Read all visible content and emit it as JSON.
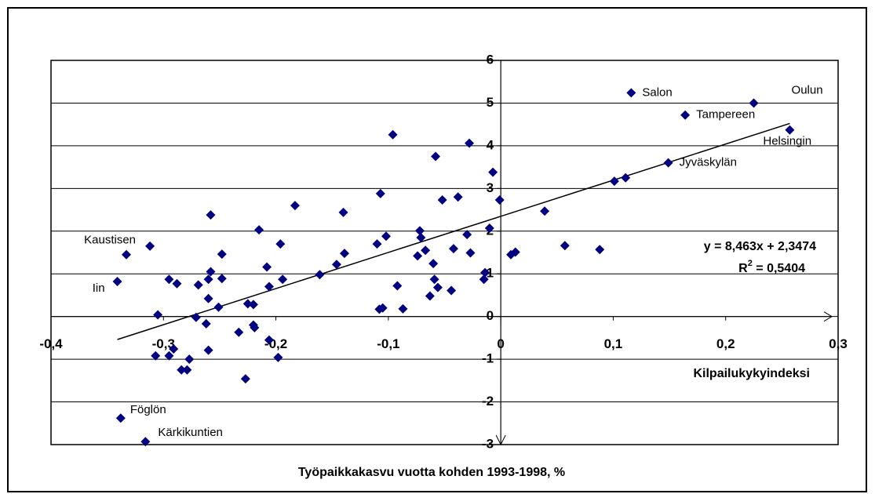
{
  "chart_data": {
    "type": "scatter",
    "x_label": "Kilpailukykyindeksi",
    "y_label": "Työpaikkakasvu vuotta kohden 1993-1998, %",
    "equation_label": "y = 8,463x + 2,3474",
    "r_squared_label": {
      "base": "R",
      "sup": "2",
      "rest": " = 0,5404"
    },
    "trendline": {
      "slope": 8.463,
      "intercept": 2.3474
    },
    "color": "#000080",
    "xlim": [
      -0.4,
      0.3
    ],
    "ylim": [
      -3,
      6
    ],
    "xticks": [
      {
        "value": -0.4,
        "label": "-0,4"
      },
      {
        "value": -0.3,
        "label": "-0,3"
      },
      {
        "value": -0.2,
        "label": "-0,2"
      },
      {
        "value": -0.1,
        "label": "-0,1"
      },
      0,
      {
        "value": 0.1,
        "label": "0,1"
      },
      {
        "value": 0.2,
        "label": "0,2"
      },
      {
        "value": 0.3,
        "label": "0,3"
      }
    ],
    "yticks": [
      -3,
      -2,
      -1,
      0,
      1,
      2,
      3,
      4,
      5,
      6
    ],
    "grid": true,
    "x": [
      0.116,
      0.225,
      0.164,
      0.257,
      0.149,
      -0.333,
      -0.341,
      -0.338,
      -0.316,
      0.101,
      0.111,
      0.039,
      0.057,
      0.088,
      -0.312,
      -0.295,
      -0.305,
      -0.307,
      -0.295,
      -0.291,
      -0.284,
      -0.279,
      -0.277,
      -0.271,
      -0.288,
      -0.269,
      -0.26,
      -0.258,
      -0.26,
      -0.262,
      -0.26,
      -0.258,
      -0.248,
      -0.248,
      -0.251,
      -0.233,
      -0.227,
      -0.225,
      -0.22,
      -0.22,
      -0.219,
      -0.215,
      -0.208,
      -0.206,
      -0.206,
      -0.198,
      -0.196,
      -0.194,
      -0.183,
      -0.161,
      -0.146,
      -0.14,
      -0.139,
      -0.11,
      -0.107,
      -0.108,
      -0.105,
      -0.102,
      -0.096,
      -0.092,
      -0.087,
      -0.074,
      -0.072,
      -0.071,
      -0.067,
      -0.063,
      -0.059,
      -0.06,
      -0.058,
      -0.056,
      -0.052,
      -0.044,
      -0.042,
      -0.038,
      -0.03,
      -0.028,
      -0.027,
      -0.007,
      -0.001,
      -0.01,
      -0.014,
      -0.015,
      0.009,
      0.013
    ],
    "values": [
      5.24,
      5.0,
      4.72,
      4.37,
      3.6,
      1.45,
      0.82,
      -2.38,
      -2.93,
      3.17,
      3.25,
      2.47,
      1.66,
      1.57,
      1.65,
      0.87,
      0.04,
      -0.92,
      -0.92,
      -0.76,
      -1.25,
      -1.25,
      -1.0,
      -0.02,
      0.77,
      0.74,
      0.87,
      1.05,
      0.42,
      -0.17,
      -0.79,
      2.38,
      1.46,
      0.89,
      0.22,
      -0.37,
      -1.46,
      0.3,
      0.28,
      -0.2,
      -0.26,
      2.03,
      1.16,
      0.7,
      -0.55,
      -0.96,
      1.7,
      0.87,
      2.6,
      0.98,
      1.22,
      2.44,
      1.48,
      1.7,
      2.88,
      0.17,
      0.2,
      1.88,
      4.26,
      0.72,
      0.18,
      1.42,
      2.01,
      1.85,
      1.55,
      0.48,
      0.87,
      1.24,
      3.75,
      0.68,
      2.73,
      0.61,
      1.59,
      2.8,
      1.92,
      4.06,
      1.49,
      3.38,
      2.73,
      2.07,
      1.03,
      0.87,
      1.45,
      1.51
    ],
    "labels": [
      "Salon",
      "Oulun",
      "Tampereen",
      "Helsingin",
      "Jyväskylän",
      "Kaustisen",
      "Iin",
      "Föglön",
      "Kärkikuntien"
    ]
  }
}
